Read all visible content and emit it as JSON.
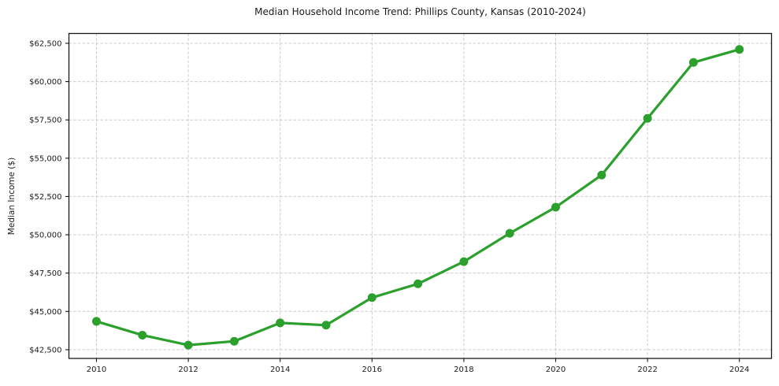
{
  "chart_data": {
    "type": "line",
    "title": "Median Household Income Trend: Phillips County, Kansas (2010-2024)",
    "xlabel": "",
    "ylabel": "Median Income ($)",
    "x": [
      2010,
      2011,
      2012,
      2013,
      2014,
      2015,
      2016,
      2017,
      2018,
      2019,
      2020,
      2021,
      2022,
      2023,
      2024
    ],
    "series": [
      {
        "name": "Median Household Income",
        "values": [
          44350,
          43450,
          42800,
          43050,
          44250,
          44100,
          45900,
          46800,
          48250,
          50100,
          51800,
          53900,
          57600,
          61250,
          62100
        ]
      }
    ],
    "x_ticks": [
      2010,
      2012,
      2014,
      2016,
      2018,
      2020,
      2022,
      2024
    ],
    "y_ticks": [
      42500,
      45000,
      47500,
      50000,
      52500,
      55000,
      57500,
      60000,
      62500
    ],
    "y_tick_labels": [
      "$42,500",
      "$45,000",
      "$47,500",
      "$50,000",
      "$52,500",
      "$55,000",
      "$57,500",
      "$60,000",
      "$62,500"
    ],
    "xlim": [
      2009.4,
      2024.7
    ],
    "ylim": [
      41930,
      63140
    ],
    "grid": true,
    "legend": "none",
    "colors": {
      "line": "#2ca02c",
      "marker": "#2ca02c",
      "grid": "#cccccc",
      "spine": "#1a1a1a",
      "text": "#1a1a1a",
      "background": "#ffffff"
    }
  }
}
